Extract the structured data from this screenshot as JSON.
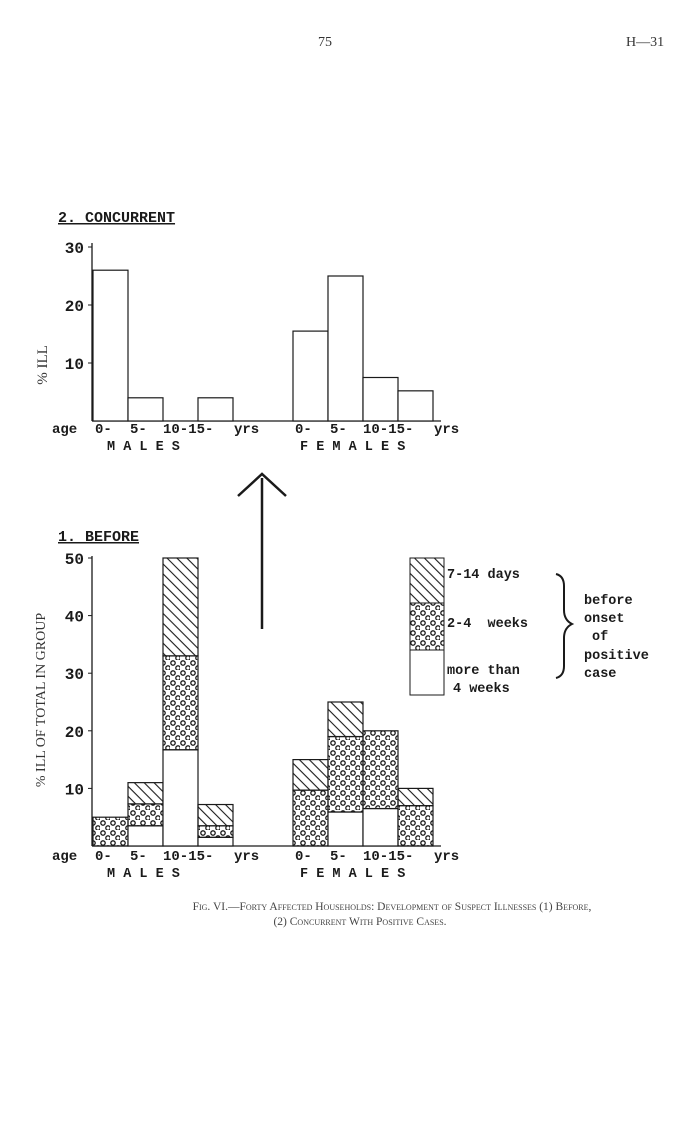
{
  "header": {
    "page_number": "75",
    "doc_ref": "H—31"
  },
  "caption": {
    "line1": "Fig. VI.—Forty Affected Households: Development of Suspect Illnesses (1) Before,",
    "line2": "(2) Concurrent With Positive Cases."
  },
  "colors": {
    "ink": "#1a1a1a",
    "paper": "#ffffff"
  },
  "chart_data": [
    {
      "type": "bar",
      "title": "2. CONCURRENT",
      "ylabel": "% ILL",
      "xlabel_prefix": "age",
      "ylim": [
        0,
        30
      ],
      "yticks": [
        "30",
        "20",
        "10"
      ],
      "ytick_values": [
        30,
        20,
        10
      ],
      "groups": [
        {
          "name": "M A L E S",
          "categories": [
            "0-",
            "5-",
            "10-",
            "15-"
          ],
          "tick_labels": [
            "0-",
            "5-",
            "10-15-",
            "yrs"
          ],
          "values": [
            26,
            4,
            0,
            4
          ]
        },
        {
          "name": "F E M A L E S",
          "categories": [
            "0-",
            "5-",
            "10-",
            "15-"
          ],
          "tick_labels": [
            "0-",
            "5-",
            "10-15-",
            "yrs"
          ],
          "values": [
            15.5,
            25,
            7.5,
            5.2
          ]
        }
      ]
    },
    {
      "type": "stacked-bar",
      "title": "1. BEFORE",
      "ylabel": "% ILL OF TOTAL IN GROUP",
      "xlabel_prefix": "age",
      "ylim": [
        0,
        50
      ],
      "yticks": [
        "50",
        "40",
        "30",
        "20",
        "10"
      ],
      "ytick_values": [
        50,
        40,
        30,
        20,
        10
      ],
      "series": [
        {
          "name": "more than 4 weeks",
          "pattern": "blank"
        },
        {
          "name": "2-4 weeks",
          "pattern": "circles"
        },
        {
          "name": "7-14 days",
          "pattern": "hatch"
        }
      ],
      "groups": [
        {
          "name": "M A L E S",
          "categories": [
            "0-",
            "5-",
            "10-",
            "15-"
          ],
          "tick_labels": [
            "0-",
            "5-",
            "10-15-",
            "yrs"
          ],
          "values": [
            [
              0,
              5,
              0
            ],
            [
              3.5,
              3.8,
              3.7
            ],
            [
              16.7,
              16.3,
              17
            ],
            [
              1.5,
              2,
              3.7
            ]
          ]
        },
        {
          "name": "F E M A L E S",
          "categories": [
            "0-",
            "5-",
            "10-",
            "15-"
          ],
          "tick_labels": [
            "0-",
            "5-",
            "10-15-",
            "yrs"
          ],
          "values": [
            [
              0,
              9.7,
              5.3
            ],
            [
              5.9,
              13.1,
              6
            ],
            [
              6.5,
              13.5,
              0
            ],
            [
              0,
              7,
              3
            ]
          ]
        }
      ],
      "legend": {
        "items": [
          "7-14 days",
          "2-4  weeks",
          "more than",
          "4 weeks"
        ],
        "brace_text": [
          "before",
          "onset",
          "of",
          "positive",
          "case"
        ],
        "placement": "right"
      }
    }
  ]
}
